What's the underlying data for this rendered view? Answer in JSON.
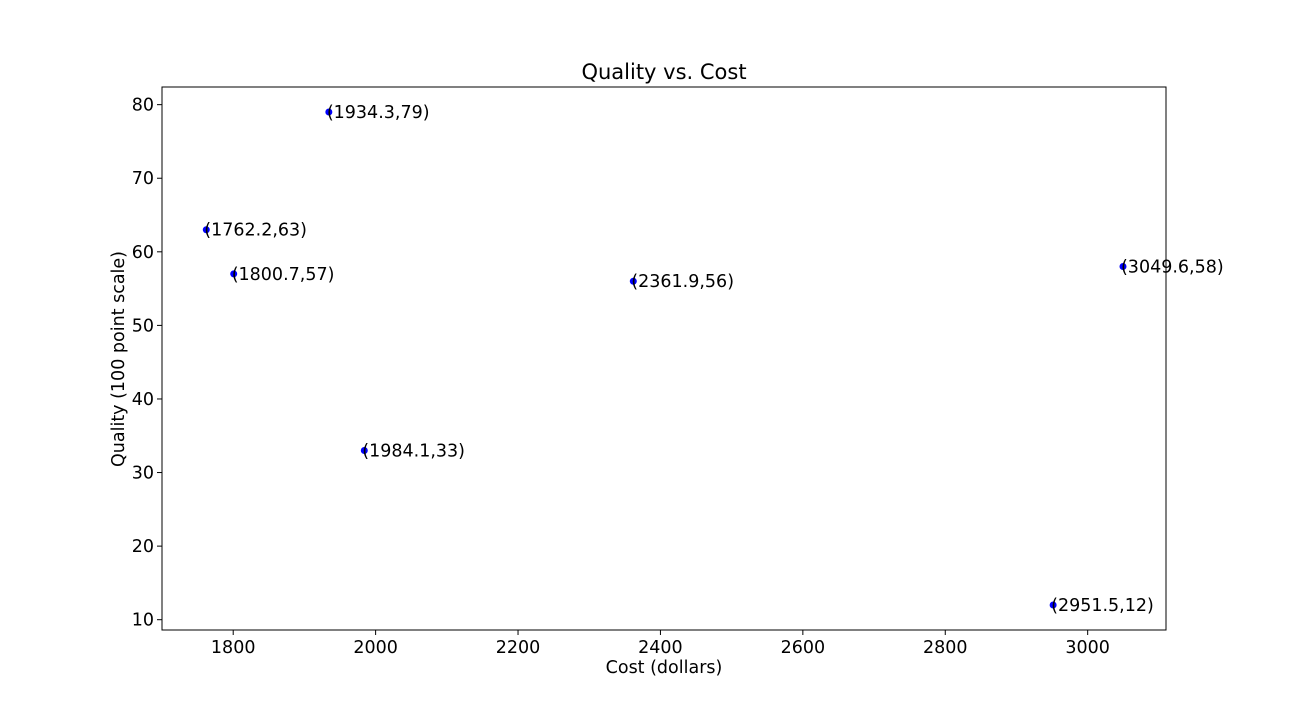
{
  "chart_data": {
    "type": "scatter",
    "title": "Quality vs. Cost",
    "xlabel": "Cost (dollars)",
    "ylabel": "Quality (100 point scale)",
    "xlim": [
      1700,
      3110
    ],
    "ylim": [
      8.6,
      82.4
    ],
    "xticks": [
      1800,
      2000,
      2200,
      2400,
      2600,
      2800,
      3000
    ],
    "yticks": [
      10,
      20,
      30,
      40,
      50,
      60,
      70,
      80
    ],
    "grid": false,
    "legend": "none",
    "marker_color": "#0000ff",
    "points": [
      {
        "x": 1934.3,
        "y": 79,
        "label": "(1934.3,79)"
      },
      {
        "x": 1762.2,
        "y": 63,
        "label": "(1762.2,63)"
      },
      {
        "x": 1800.7,
        "y": 57,
        "label": "(1800.7,57)"
      },
      {
        "x": 2361.9,
        "y": 56,
        "label": "(2361.9,56)"
      },
      {
        "x": 3049.6,
        "y": 58,
        "label": "(3049.6,58)"
      },
      {
        "x": 1984.1,
        "y": 33,
        "label": "(1984.1,33)"
      },
      {
        "x": 2951.5,
        "y": 12,
        "label": "(2951.5,12)"
      }
    ]
  }
}
